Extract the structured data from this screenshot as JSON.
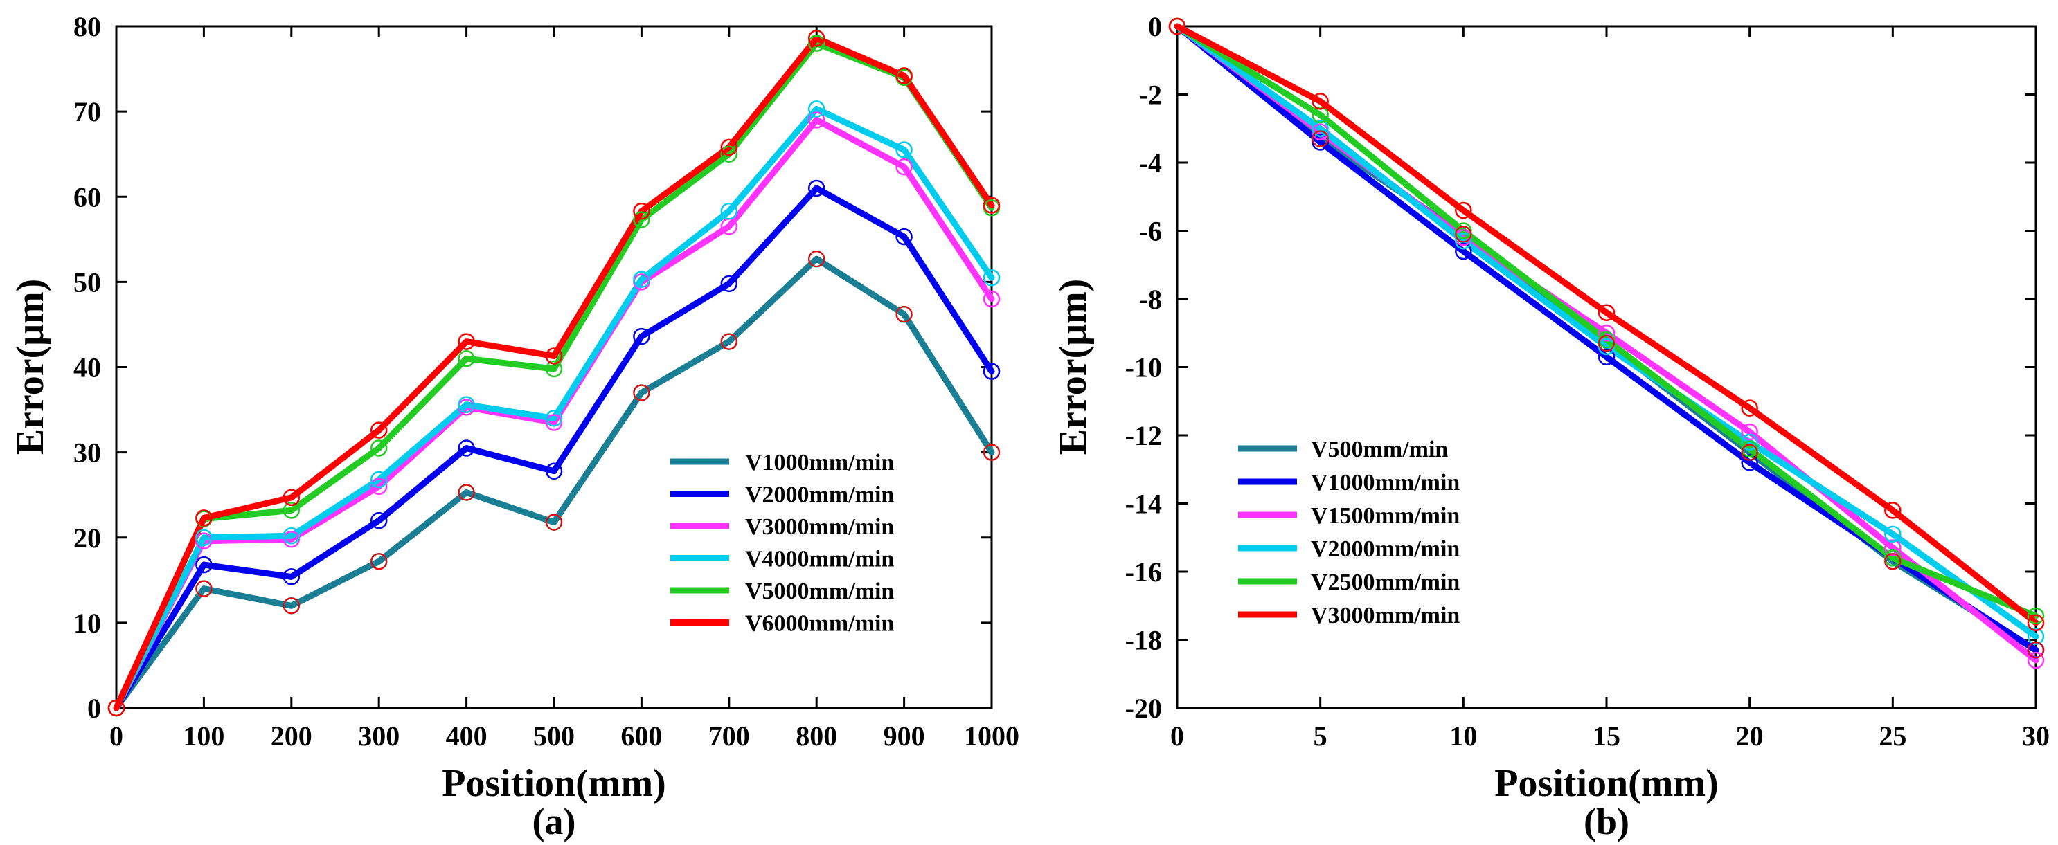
{
  "chart_data": [
    {
      "type": "line",
      "panel_label": "(a)",
      "title": "",
      "xlabel": "Position(mm)",
      "ylabel": "Error(μm)",
      "xlim": [
        0,
        1000
      ],
      "ylim": [
        0,
        80
      ],
      "x_ticks": [
        "0",
        "100",
        "200",
        "300",
        "400",
        "500",
        "600",
        "700",
        "800",
        "900",
        "1000"
      ],
      "y_ticks": [
        "0",
        "10",
        "20",
        "30",
        "40",
        "50",
        "60",
        "70",
        "80"
      ],
      "grid": false,
      "legend_position": "bottom-right",
      "x": [
        0,
        100,
        200,
        300,
        400,
        500,
        600,
        700,
        800,
        900,
        1000
      ],
      "marker_color": "#ff0000",
      "series": [
        {
          "name": "V1000mm/min",
          "color": "#1a7f94",
          "values": [
            0,
            14,
            12,
            17.2,
            25.3,
            21.8,
            37,
            43,
            52.7,
            46.2,
            30
          ]
        },
        {
          "name": "V2000mm/min",
          "color": "#0000ee",
          "values": [
            0,
            16.8,
            15.4,
            22,
            30.5,
            27.8,
            43.6,
            49.8,
            61,
            55.3,
            39.5
          ]
        },
        {
          "name": "V3000mm/min",
          "color": "#ff33ff",
          "values": [
            0,
            19.6,
            19.8,
            26,
            35.3,
            33.5,
            50,
            56.5,
            69,
            63.5,
            48
          ]
        },
        {
          "name": "V4000mm/min",
          "color": "#00ccee",
          "values": [
            0,
            20,
            20.2,
            26.8,
            35.6,
            34,
            50.3,
            58.3,
            70.3,
            65.5,
            50.5
          ]
        },
        {
          "name": "V5000mm/min",
          "color": "#22cc22",
          "values": [
            0,
            22.2,
            23.2,
            30.5,
            41,
            39.8,
            57.3,
            65,
            78,
            74,
            58.7
          ]
        },
        {
          "name": "V6000mm/min",
          "color": "#ff0000",
          "values": [
            0,
            22.3,
            24.7,
            32.6,
            43,
            41.3,
            58.3,
            65.8,
            78.6,
            74.2,
            59
          ]
        }
      ]
    },
    {
      "type": "line",
      "panel_label": "(b)",
      "title": "",
      "xlabel": "Position(mm)",
      "ylabel": "Error(μm)",
      "xlim": [
        0,
        30
      ],
      "ylim": [
        -20,
        0
      ],
      "x_ticks": [
        "0",
        "5",
        "10",
        "15",
        "20",
        "25",
        "30"
      ],
      "y_ticks": [
        "0",
        "-2",
        "-4",
        "-6",
        "-8",
        "-10",
        "-12",
        "-14",
        "-16",
        "-18",
        "-20"
      ],
      "grid": false,
      "legend_position": "bottom-left",
      "x": [
        0,
        5,
        10,
        15,
        20,
        25,
        30
      ],
      "marker_color": "#ff0000",
      "series": [
        {
          "name": "V500mm/min",
          "color": "#1a7f94",
          "values": [
            0,
            -3.3,
            -6.1,
            -9.3,
            -12.5,
            -15.7,
            -18.3
          ]
        },
        {
          "name": "V1000mm/min",
          "color": "#0000ee",
          "values": [
            0,
            -3.4,
            -6.6,
            -9.7,
            -12.8,
            -15.6,
            -18.3
          ]
        },
        {
          "name": "V1500mm/min",
          "color": "#ff33ff",
          "values": [
            0,
            -3.1,
            -6.2,
            -9.0,
            -11.9,
            -15.3,
            -18.6
          ]
        },
        {
          "name": "V2000mm/min",
          "color": "#00ccee",
          "values": [
            0,
            -3.0,
            -6.3,
            -9.4,
            -12.2,
            -14.9,
            -17.9
          ]
        },
        {
          "name": "V2500mm/min",
          "color": "#22cc22",
          "values": [
            0,
            -2.6,
            -6.0,
            -9.2,
            -12.4,
            -15.6,
            -17.3
          ]
        },
        {
          "name": "V3000mm/min",
          "color": "#ff0000",
          "values": [
            0,
            -2.2,
            -5.4,
            -8.4,
            -11.2,
            -14.2,
            -17.5
          ]
        }
      ]
    }
  ]
}
